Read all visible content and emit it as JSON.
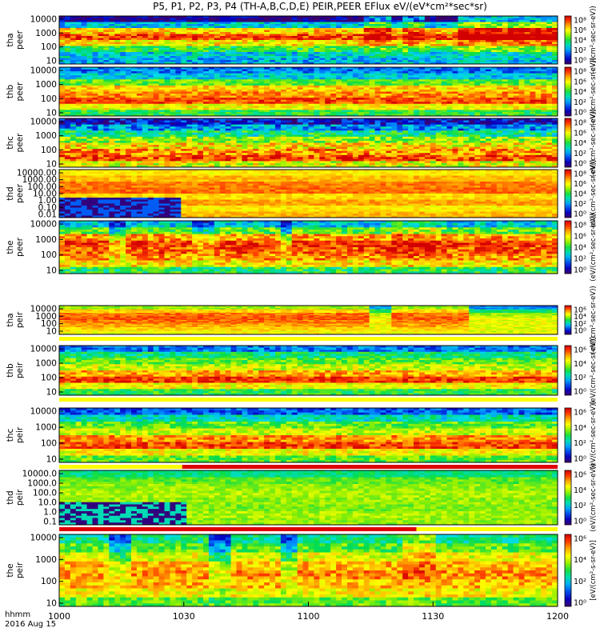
{
  "chart_data": {
    "type": "heatmap",
    "title": "P5, P1, P2, P3, P4 (TH-A,B,C,D,E) PEIR,PEER EFlux eV/(eV*cm²*sec*sr)",
    "x_ticks": [
      "1000",
      "1030",
      "1100",
      "1130",
      "1200"
    ],
    "x_tick_minutes": [
      0,
      30,
      60,
      90,
      120
    ],
    "x_range_minutes": [
      0,
      120
    ],
    "footer": {
      "line1": "hhmm",
      "line2": "2016 Aug 15"
    },
    "colorbar_label": "[eV/(cm²-s-sr-eV)]",
    "colorbar_label_short": "(eV/(cm²-sec-sr-eV))",
    "panels": [
      {
        "name": "tha-peer",
        "label1": "tha",
        "label2": "peer",
        "yticks": [
          "10000",
          "1000",
          "100",
          "10"
        ],
        "cbar": [
          "10⁸",
          "10⁶",
          "10⁴",
          "10²",
          "10⁰"
        ],
        "profile": [
          0.05,
          0.35,
          0.75,
          0.9,
          0.72,
          0.5,
          0.35,
          0.32
        ],
        "noise": 0.25,
        "events": [
          [
            0.61,
            0.66,
            0.25
          ],
          [
            0.68,
            0.73,
            0.2
          ],
          [
            0.8,
            1.0,
            0.3
          ]
        ],
        "dropout": [],
        "bar": null
      },
      {
        "name": "thb-peer",
        "label1": "thb",
        "label2": "peer",
        "yticks": [
          "10000",
          "1000",
          "100",
          "10"
        ],
        "cbar": [
          "10⁸",
          "10⁶",
          "10⁴",
          "10²",
          "10⁰"
        ],
        "profile": [
          0.25,
          0.35,
          0.55,
          0.75,
          0.82,
          0.9,
          0.7,
          0.5
        ],
        "noise": 0.2,
        "events": [],
        "dropout": [],
        "bar": null
      },
      {
        "name": "thc-peer",
        "label1": "thc",
        "label2": "peer",
        "yticks": [
          "10000",
          "1000",
          "100",
          "10"
        ],
        "cbar": [
          "10⁸",
          "10⁶",
          "10⁴",
          "10²",
          "10⁰"
        ],
        "profile": [
          0.12,
          0.28,
          0.45,
          0.6,
          0.72,
          0.82,
          0.9,
          0.68
        ],
        "noise": 0.3,
        "events": [],
        "dropout": [],
        "bar": null
      },
      {
        "name": "thd-peer",
        "label1": "thd",
        "label2": "peer",
        "yticks": [
          "10000.00",
          "1000.00",
          "100.00",
          "10.00",
          "1.00",
          "0.10",
          "0.01"
        ],
        "cbar": [
          "10⁸",
          "10⁶",
          "10⁴",
          "10²",
          "10⁰"
        ],
        "profile": [
          0.72,
          0.78,
          0.84,
          0.86,
          0.74,
          0.8,
          0.72,
          0.78
        ],
        "noise": 0.1,
        "events": [],
        "dropout": [
          [
            0.0,
            0.24,
            0.22
          ]
        ],
        "bar": null
      },
      {
        "name": "the-peer",
        "label1": "the",
        "label2": "peer",
        "yticks": [
          "10000",
          "1000",
          "100",
          "10"
        ],
        "cbar": [
          "10⁸",
          "10⁶",
          "10⁴",
          "10²",
          "10⁰"
        ],
        "profile": [
          0.35,
          0.55,
          0.8,
          0.92,
          0.88,
          0.82,
          0.72,
          0.5
        ],
        "noise": 0.25,
        "events": [
          [
            0.1,
            0.13,
            -0.25
          ],
          [
            0.26,
            0.3,
            -0.2
          ],
          [
            0.44,
            0.46,
            -0.25
          ],
          [
            0.66,
            0.75,
            0.12
          ]
        ],
        "dropout": [],
        "bar": null
      },
      {
        "name": "tha-peir",
        "label1": "tha",
        "label2": "peir",
        "yticks": [
          "10000",
          "1000",
          "100",
          "10"
        ],
        "cbar": [
          "10⁶",
          "10⁴",
          "10²",
          "10⁰"
        ],
        "profile": [
          0.6,
          0.75,
          0.85,
          0.88,
          0.85,
          0.8,
          0.75,
          0.7
        ],
        "noise": 0.12,
        "events": [
          [
            0.62,
            0.66,
            -0.3
          ],
          [
            0.82,
            1.0,
            -0.35
          ]
        ],
        "dropout": [],
        "bar": "#ffff00"
      },
      {
        "name": "thb-peir",
        "label1": "thb",
        "label2": "peir",
        "yticks": [
          "10000",
          "1000",
          "100",
          "10"
        ],
        "cbar": [
          "10⁶",
          "10⁴",
          "10²",
          "10⁰"
        ],
        "profile": [
          0.25,
          0.45,
          0.55,
          0.65,
          0.8,
          0.92,
          0.7,
          0.5
        ],
        "noise": 0.2,
        "events": [],
        "dropout": [],
        "bar": "#ffff00"
      },
      {
        "name": "thc-peir",
        "label1": "thc",
        "label2": "peir",
        "yticks": [
          "10000",
          "1000",
          "100",
          "10"
        ],
        "cbar": [
          "10⁶",
          "10⁴",
          "10²",
          "10⁰"
        ],
        "profile": [
          0.22,
          0.4,
          0.55,
          0.65,
          0.82,
          0.9,
          0.7,
          0.55
        ],
        "noise": 0.2,
        "events": [],
        "dropout": [],
        "bar": "#ffff00"
      },
      {
        "name": "thd-peir",
        "label1": "thd",
        "label2": "peir",
        "yticks": [
          "10000.0",
          "1000.0",
          "100.0",
          "10.0",
          "1.0",
          "0.1"
        ],
        "cbar": [
          "10⁶",
          "10⁴",
          "10²",
          "10⁰"
        ],
        "profile": [
          0.45,
          0.55,
          0.6,
          0.62,
          0.6,
          0.58,
          0.62,
          0.6
        ],
        "noise": 0.12,
        "events": [],
        "dropout": [
          [
            0.0,
            0.25,
            0.4
          ]
        ],
        "bar": "#dd0000"
      },
      {
        "name": "the-peir",
        "label1": "the",
        "label2": "peir",
        "yticks": [
          "10000",
          "1000",
          "100",
          "10"
        ],
        "cbar": [
          "10⁶",
          "10⁴",
          "10²",
          "10⁰"
        ],
        "profile": [
          0.45,
          0.55,
          0.68,
          0.78,
          0.82,
          0.78,
          0.7,
          0.55
        ],
        "noise": 0.2,
        "events": [
          [
            0.1,
            0.14,
            -0.25
          ],
          [
            0.3,
            0.34,
            -0.3
          ],
          [
            0.44,
            0.47,
            -0.25
          ],
          [
            0.68,
            0.75,
            0.15
          ]
        ],
        "dropout": [],
        "bar": "#dd0000"
      }
    ],
    "mode_bars": [
      {
        "panel": "tha-peir",
        "segments": [
          {
            "from_minute": 0,
            "to_minute": 120,
            "color": "#ffff00"
          }
        ]
      },
      {
        "panel": "thb-peir",
        "segments": [
          {
            "from_minute": 0,
            "to_minute": 120,
            "color": "#ffff00"
          }
        ]
      },
      {
        "panel": "thc-peir",
        "segments": [
          {
            "from_minute": 0,
            "to_minute": 29.6,
            "color": "#ffff00"
          },
          {
            "from_minute": 29.6,
            "to_minute": 120,
            "color": "#dd0000"
          }
        ]
      },
      {
        "panel": "thd-peir",
        "segments": [
          {
            "from_minute": 0,
            "to_minute": 86,
            "color": "#dd0000"
          },
          {
            "from_minute": 86,
            "to_minute": 120,
            "color": "#ffff00"
          }
        ]
      }
    ]
  }
}
